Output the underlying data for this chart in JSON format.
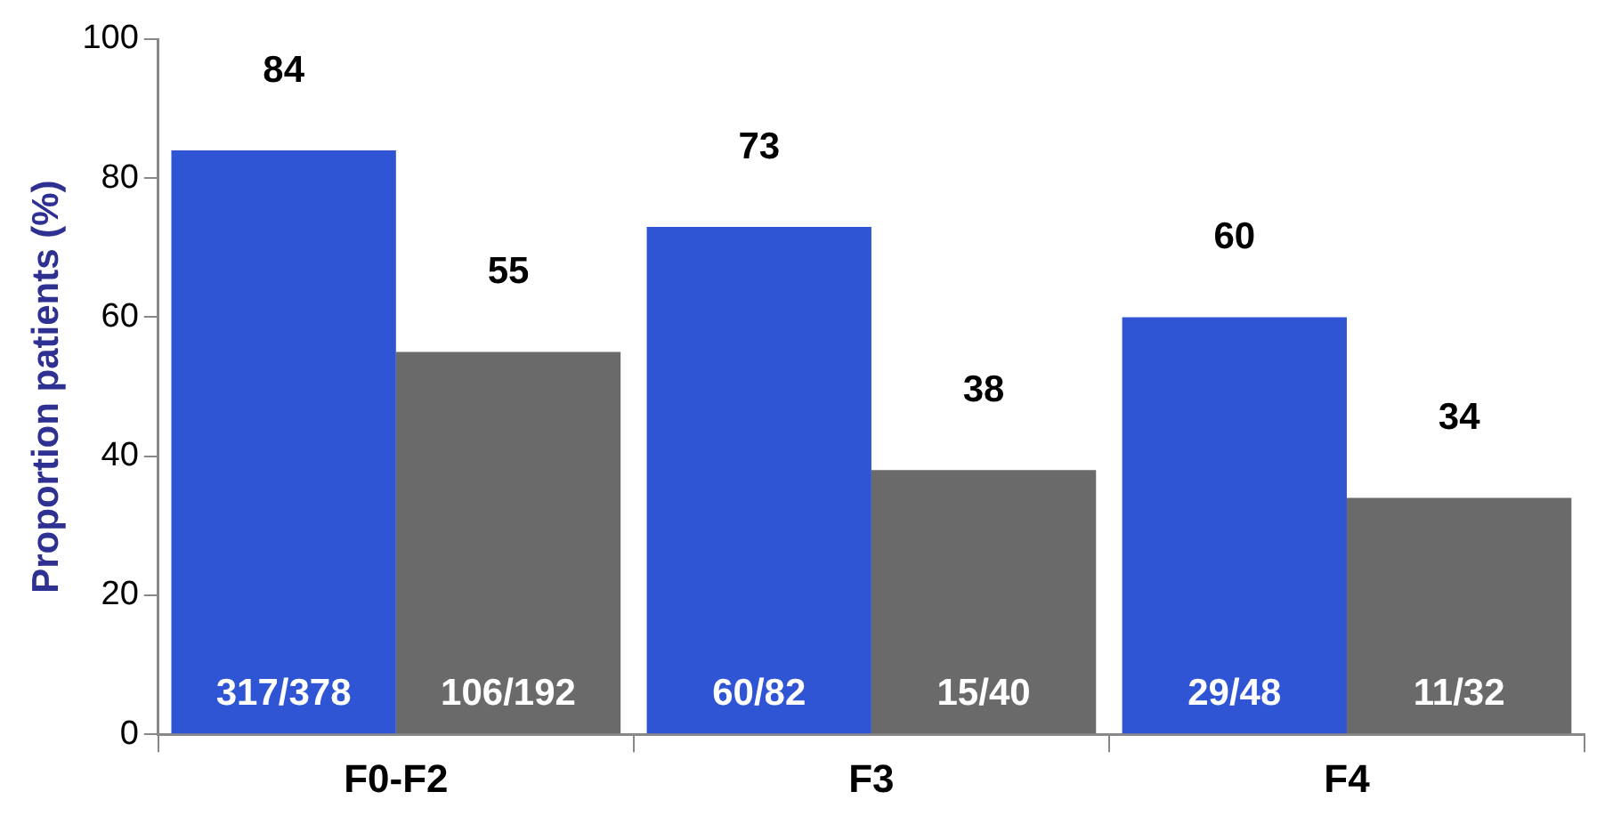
{
  "chart_data": {
    "type": "bar",
    "ylabel": "Proportion patients (%)",
    "categories": [
      "F0-F2",
      "F3",
      "F4"
    ],
    "series": [
      {
        "color": "#2f55d4",
        "values": [
          84,
          73,
          60
        ],
        "value_labels": [
          "84",
          "73",
          "60"
        ]
      },
      {
        "color": "#6a6a6a",
        "values": [
          55,
          38,
          34
        ],
        "value_labels": [
          "55",
          "38",
          "34"
        ]
      }
    ],
    "annotations": [
      {
        "text": "317/378",
        "x": "F0-F2",
        "y": 0
      },
      {
        "text": "106/192",
        "x": "F0-F2",
        "y": 0
      },
      {
        "text": "60/82",
        "x": "F3",
        "y": 0
      },
      {
        "text": "15/40",
        "x": "F3",
        "y": 0
      },
      {
        "text": "29/48",
        "x": "F4",
        "y": 0
      },
      {
        "text": "11/32",
        "x": "F4",
        "y": 0
      }
    ],
    "ylim": [
      0,
      100
    ],
    "yticks": [
      0,
      20,
      40,
      60,
      80,
      100
    ],
    "grid": false,
    "legend": false
  }
}
